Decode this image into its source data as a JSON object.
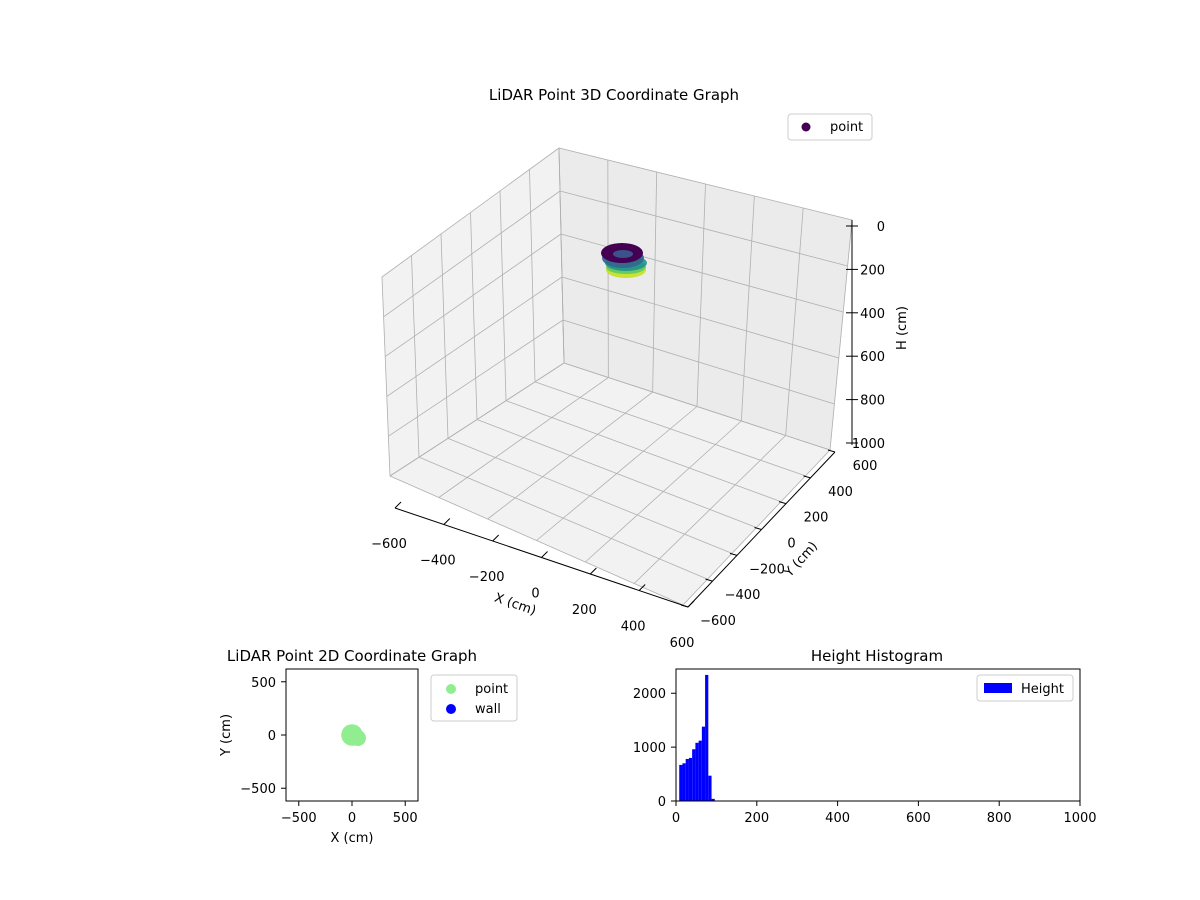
{
  "chart_data": [
    {
      "type": "scatter",
      "title": "LiDAR Point 3D Coordinate Graph",
      "xlabel": "X (cm)",
      "ylabel": "Y (cm)",
      "zlabel": "H (cm)",
      "xlim": [
        -600,
        600
      ],
      "ylim": [
        -600,
        600
      ],
      "zlim": [
        0,
        1000
      ],
      "z_axis_inverted": true,
      "x_ticks": [
        -600,
        -400,
        -200,
        0,
        200,
        400,
        600
      ],
      "y_ticks": [
        -600,
        -400,
        -200,
        0,
        200,
        400,
        600
      ],
      "z_ticks": [
        0,
        200,
        400,
        600,
        800,
        1000
      ],
      "grid": true,
      "legend": {
        "position": "top-right",
        "entries": [
          "point"
        ]
      },
      "series": [
        {
          "name": "point",
          "colormap": "viridis",
          "color": "#440154",
          "description_ring": {
            "center_x": 0,
            "center_y": 0,
            "radius": 75,
            "h_range": [
              20,
              90
            ]
          }
        }
      ]
    },
    {
      "type": "scatter",
      "title": "LiDAR Point 2D Coordinate Graph",
      "xlabel": "X (cm)",
      "ylabel": "Y (cm)",
      "xlim": [
        -620,
        620
      ],
      "ylim": [
        -620,
        620
      ],
      "x_ticks": [
        -500,
        0,
        500
      ],
      "y_ticks": [
        -500,
        0,
        500
      ],
      "grid": false,
      "legend": {
        "position": "outside-right",
        "entries": [
          "point",
          "wall"
        ]
      },
      "series": [
        {
          "name": "point",
          "color": "#90ee90",
          "center": [
            0,
            0
          ],
          "radius": 75
        },
        {
          "name": "wall",
          "color": "#0000ff"
        }
      ]
    },
    {
      "type": "bar",
      "title": "Height Histogram",
      "xlabel": "",
      "ylabel": "",
      "xlim": [
        0,
        1000
      ],
      "ylim": [
        0,
        2450
      ],
      "x_ticks": [
        0,
        200,
        400,
        600,
        800,
        1000
      ],
      "y_ticks": [
        0,
        1000,
        2000
      ],
      "grid": false,
      "legend": {
        "position": "top-right",
        "entries": [
          "Height"
        ]
      },
      "series": [
        {
          "name": "Height",
          "color": "#0000ff",
          "bin_width": 8,
          "bins": [
            {
              "start": 8,
              "count": 670
            },
            {
              "start": 16,
              "count": 700
            },
            {
              "start": 24,
              "count": 780
            },
            {
              "start": 32,
              "count": 800
            },
            {
              "start": 40,
              "count": 960
            },
            {
              "start": 48,
              "count": 1080
            },
            {
              "start": 56,
              "count": 1120
            },
            {
              "start": 64,
              "count": 1380
            },
            {
              "start": 72,
              "count": 2340
            },
            {
              "start": 80,
              "count": 470
            },
            {
              "start": 88,
              "count": 40
            }
          ]
        }
      ]
    }
  ]
}
